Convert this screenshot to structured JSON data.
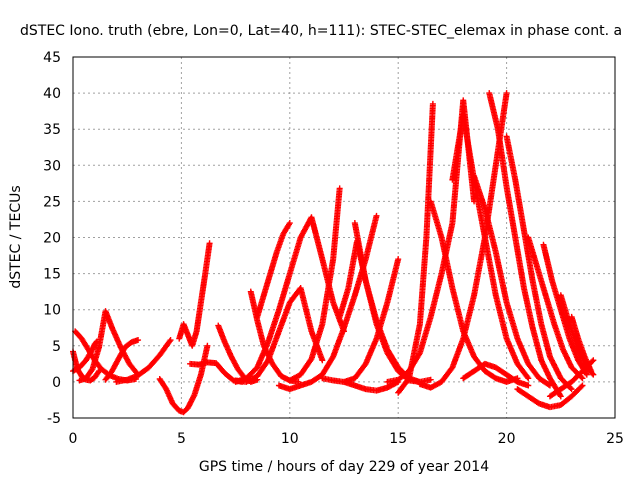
{
  "chart_data": {
    "type": "scatter",
    "title": "dSTEC Iono. truth (ebre, Lon=0, Lat=40, h=111): STEC-STEC_elemax in phase cont. a",
    "xlabel": "GPS time / hours of day 229 of year 2014",
    "ylabel": "dSTEC  / TECUs",
    "xlim": [
      0,
      25
    ],
    "ylim": [
      -5,
      45
    ],
    "xticks": [
      0,
      5,
      10,
      15,
      20,
      25
    ],
    "yticks": [
      -5,
      0,
      5,
      10,
      15,
      20,
      25,
      30,
      35,
      40,
      45
    ],
    "grid": true,
    "legend": "none",
    "marker": "plus",
    "color": "#ff0000",
    "series": [
      {
        "x": [
          0.0,
          0.2,
          0.4,
          0.6,
          0.8,
          1.0,
          1.2
        ],
        "y": [
          4.2,
          1.8,
          0.8,
          0.3,
          0.2,
          0.6,
          1.5
        ]
      },
      {
        "x": [
          0.1,
          0.4,
          0.7,
          1.0,
          1.3,
          1.7,
          2.1,
          2.5,
          2.9
        ],
        "y": [
          7.0,
          6.0,
          4.5,
          3.0,
          1.8,
          0.9,
          0.4,
          0.2,
          0.4
        ]
      },
      {
        "x": [
          0.3,
          0.6,
          0.9,
          1.2,
          1.5,
          1.8,
          2.2,
          2.6,
          3.0
        ],
        "y": [
          0.2,
          0.5,
          1.8,
          4.8,
          9.8,
          7.5,
          4.8,
          2.5,
          1.0
        ]
      },
      {
        "x": [
          0.0,
          0.3,
          0.6,
          0.9,
          1.0,
          1.1
        ],
        "y": [
          1.5,
          2.0,
          3.0,
          4.5,
          5.2,
          5.6
        ]
      },
      {
        "x": [
          1.5,
          1.8,
          2.1,
          2.4,
          2.7,
          3.0
        ],
        "y": [
          0.3,
          1.5,
          3.2,
          4.8,
          5.5,
          5.8
        ]
      },
      {
        "x": [
          2.0,
          2.5,
          3.0,
          3.5,
          4.0,
          4.5
        ],
        "y": [
          0.0,
          0.3,
          0.9,
          2.0,
          3.7,
          5.8
        ]
      },
      {
        "x": [
          4.0,
          4.3,
          4.6,
          4.9,
          5.1,
          5.3,
          5.6,
          5.9,
          6.2
        ],
        "y": [
          0.4,
          -1.0,
          -3.0,
          -4.0,
          -4.2,
          -3.6,
          -1.8,
          1.0,
          5.0
        ]
      },
      {
        "x": [
          4.9,
          5.1,
          5.3,
          5.5,
          5.7,
          5.9,
          6.1,
          6.3
        ],
        "y": [
          6.0,
          8.0,
          6.5,
          5.0,
          7.0,
          11.0,
          15.0,
          19.2
        ]
      },
      {
        "x": [
          5.4,
          5.8,
          6.2,
          6.6,
          7.0,
          7.4,
          7.8
        ],
        "y": [
          2.5,
          2.4,
          2.7,
          2.6,
          1.2,
          0.2,
          0.0
        ]
      },
      {
        "x": [
          6.7,
          7.0,
          7.3,
          7.6,
          7.9,
          8.2,
          8.5
        ],
        "y": [
          7.8,
          5.5,
          3.5,
          1.8,
          0.6,
          0.0,
          0.3
        ]
      },
      {
        "x": [
          7.5,
          8.0,
          8.5,
          9.0,
          9.5,
          10.0,
          10.5,
          11.0,
          11.5
        ],
        "y": [
          0.2,
          0.0,
          0.8,
          3.0,
          7.0,
          11.0,
          13.0,
          7.0,
          3.0
        ]
      },
      {
        "x": [
          8.2,
          8.5,
          8.8,
          9.2,
          9.6,
          10.0,
          10.4
        ],
        "y": [
          12.5,
          8.5,
          5.0,
          2.5,
          0.8,
          0.2,
          0.0
        ]
      },
      {
        "x": [
          7.5,
          8.0,
          8.5,
          9.0,
          9.5,
          10.0,
          10.5,
          11.0,
          11.5,
          12.0,
          12.5
        ],
        "y": [
          0.0,
          0.5,
          2.0,
          5.5,
          10.0,
          15.0,
          20.0,
          22.8,
          17.0,
          11.0,
          7.0
        ]
      },
      {
        "x": [
          8.5,
          8.8,
          9.1,
          9.4,
          9.7,
          10.0
        ],
        "y": [
          9.0,
          12.0,
          15.0,
          18.0,
          20.5,
          22.0
        ]
      },
      {
        "x": [
          9.5,
          10.0,
          10.5,
          11.0,
          11.5,
          12.0,
          12.5,
          13.0,
          13.5,
          14.0
        ],
        "y": [
          -0.5,
          -1.0,
          -0.5,
          0.0,
          1.0,
          3.5,
          7.5,
          12.0,
          17.0,
          23.0
        ]
      },
      {
        "x": [
          10.0,
          10.5,
          11.0,
          11.5,
          12.0,
          12.3
        ],
        "y": [
          0.2,
          1.0,
          3.2,
          8.0,
          17.0,
          26.8
        ]
      },
      {
        "x": [
          11.5,
          12.0,
          12.5,
          13.0,
          13.5,
          14.0,
          14.5,
          15.0
        ],
        "y": [
          0.5,
          0.2,
          0.0,
          0.5,
          2.5,
          6.0,
          11.0,
          17.0
        ]
      },
      {
        "x": [
          12.3,
          12.7,
          13.1,
          13.5,
          14.0,
          14.5,
          15.0,
          15.5,
          16.0
        ],
        "y": [
          9.0,
          13.0,
          19.5,
          14.0,
          8.0,
          4.0,
          1.5,
          0.2,
          0.0
        ]
      },
      {
        "x": [
          12.5,
          13.0,
          13.5,
          14.0,
          14.5,
          15.0
        ],
        "y": [
          0.0,
          -0.5,
          -1.0,
          -1.2,
          -0.8,
          0.0
        ]
      },
      {
        "x": [
          13.0,
          13.5,
          14.0,
          14.5,
          15.0,
          15.5,
          16.0,
          16.5
        ],
        "y": [
          22.0,
          14.0,
          8.5,
          4.5,
          2.0,
          0.5,
          0.0,
          0.3
        ]
      },
      {
        "x": [
          14.5,
          15.0,
          15.5,
          16.0,
          16.5,
          17.0,
          17.5,
          18.0,
          18.5
        ],
        "y": [
          0.0,
          0.3,
          1.5,
          4.0,
          9.0,
          15.0,
          22.0,
          39.0,
          25.0
        ]
      },
      {
        "x": [
          15.0,
          15.5,
          16.0,
          16.3,
          16.6
        ],
        "y": [
          -1.5,
          0.5,
          8.0,
          20.0,
          38.5
        ]
      },
      {
        "x": [
          16.0,
          16.5,
          17.0,
          17.5,
          18.0,
          18.5,
          19.0,
          19.5,
          20.0
        ],
        "y": [
          -0.3,
          -0.8,
          0.0,
          2.0,
          6.0,
          12.0,
          20.0,
          30.0,
          40.0
        ]
      },
      {
        "x": [
          16.5,
          17.0,
          17.5,
          18.0,
          18.5,
          19.0,
          19.5,
          20.0,
          20.5
        ],
        "y": [
          25.0,
          20.0,
          13.0,
          7.0,
          3.5,
          1.5,
          0.5,
          0.0,
          0.5
        ]
      },
      {
        "x": [
          17.5,
          18.0,
          18.5,
          19.0,
          19.5,
          20.0,
          20.5,
          21.0
        ],
        "y": [
          28.0,
          37.0,
          28.0,
          20.0,
          12.0,
          6.0,
          2.5,
          0.5
        ]
      },
      {
        "x": [
          18.5,
          19.0,
          19.5,
          20.0,
          20.5,
          21.0,
          21.5,
          22.0
        ],
        "y": [
          28.5,
          24.0,
          18.0,
          11.0,
          6.0,
          2.5,
          0.5,
          -0.5
        ]
      },
      {
        "x": [
          19.2,
          19.6,
          20.0,
          20.4,
          20.8,
          21.2,
          21.6,
          22.0,
          22.5
        ],
        "y": [
          40.0,
          35.0,
          27.0,
          20.0,
          13.0,
          7.5,
          3.0,
          0.5,
          -2.0
        ]
      },
      {
        "x": [
          20.0,
          20.4,
          20.8,
          21.2,
          21.6,
          22.0,
          22.5,
          23.0
        ],
        "y": [
          34.0,
          28.0,
          21.0,
          14.0,
          8.0,
          3.5,
          0.5,
          -1.0
        ]
      },
      {
        "x": [
          20.5,
          21.0,
          21.5,
          22.0,
          22.5,
          23.0,
          23.5
        ],
        "y": [
          -1.0,
          -2.0,
          -3.0,
          -3.5,
          -3.2,
          -2.0,
          -0.5
        ]
      },
      {
        "x": [
          21.0,
          21.4,
          21.8,
          22.2,
          22.6,
          23.0,
          23.5
        ],
        "y": [
          20.0,
          16.0,
          12.0,
          8.0,
          4.5,
          2.0,
          0.5
        ]
      },
      {
        "x": [
          21.7,
          22.1,
          22.5,
          22.9,
          23.3,
          23.7
        ],
        "y": [
          19.0,
          14.0,
          10.0,
          6.0,
          3.0,
          1.0
        ]
      },
      {
        "x": [
          22.5,
          22.9,
          23.3,
          23.7,
          24.0
        ],
        "y": [
          12.0,
          8.0,
          4.5,
          2.0,
          1.0
        ]
      },
      {
        "x": [
          23.0,
          23.3,
          23.6,
          23.9
        ],
        "y": [
          9.0,
          6.0,
          3.5,
          1.5
        ]
      },
      {
        "x": [
          22.0,
          22.5,
          23.0,
          23.5,
          24.0
        ],
        "y": [
          -2.0,
          -1.0,
          0.0,
          1.5,
          3.0
        ]
      },
      {
        "x": [
          18.0,
          18.5,
          19.0,
          19.5,
          20.0,
          20.5,
          21.0
        ],
        "y": [
          0.5,
          1.5,
          2.5,
          2.0,
          1.0,
          0.0,
          -0.5
        ]
      }
    ]
  }
}
